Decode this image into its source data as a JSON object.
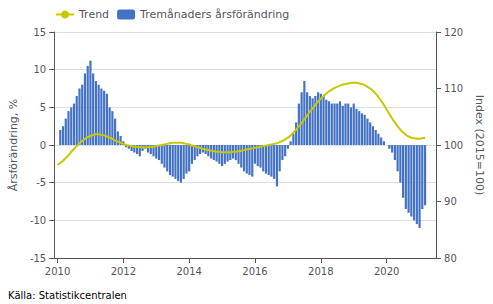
{
  "chart_data": {
    "type": "bar",
    "ylabel": "Årsförändring, %",
    "y2label": "Index (2015=100)",
    "annotations": [
      "Källa: Statistikcentralen"
    ],
    "xlim": [
      2009.9,
      2021.5
    ],
    "xticks": [
      2010,
      2012,
      2014,
      2016,
      2018,
      2020
    ],
    "ylim": [
      -15,
      15
    ],
    "yticks": [
      -15,
      -10,
      -5,
      0,
      5,
      10,
      15
    ],
    "y2lim": [
      80,
      120
    ],
    "y2ticks": [
      80,
      90,
      100,
      110,
      120
    ],
    "grid": true,
    "legend": "upper left",
    "series": [
      {
        "name": "Trend",
        "type": "line",
        "axis": "y2",
        "color": "#C8C800",
        "x": [
          2010.0,
          2010.083,
          2010.167,
          2010.25,
          2010.333,
          2010.417,
          2010.5,
          2010.583,
          2010.667,
          2010.75,
          2010.833,
          2010.917,
          2011.0,
          2011.083,
          2011.167,
          2011.25,
          2011.333,
          2011.417,
          2011.5,
          2011.583,
          2011.667,
          2011.75,
          2011.833,
          2011.917,
          2012.0,
          2012.083,
          2012.167,
          2012.25,
          2012.333,
          2012.417,
          2012.5,
          2012.583,
          2012.667,
          2012.75,
          2012.833,
          2012.917,
          2013.0,
          2013.083,
          2013.167,
          2013.25,
          2013.333,
          2013.417,
          2013.5,
          2013.583,
          2013.667,
          2013.75,
          2013.833,
          2013.917,
          2014.0,
          2014.083,
          2014.167,
          2014.25,
          2014.333,
          2014.417,
          2014.5,
          2014.583,
          2014.667,
          2014.75,
          2014.833,
          2014.917,
          2015.0,
          2015.083,
          2015.167,
          2015.25,
          2015.333,
          2015.417,
          2015.5,
          2015.583,
          2015.667,
          2015.75,
          2015.833,
          2015.917,
          2016.0,
          2016.083,
          2016.167,
          2016.25,
          2016.333,
          2016.417,
          2016.5,
          2016.583,
          2016.667,
          2016.75,
          2016.833,
          2016.917,
          2017.0,
          2017.083,
          2017.167,
          2017.25,
          2017.333,
          2017.417,
          2017.5,
          2017.583,
          2017.667,
          2017.75,
          2017.833,
          2017.917,
          2018.0,
          2018.083,
          2018.167,
          2018.25,
          2018.333,
          2018.417,
          2018.5,
          2018.583,
          2018.667,
          2018.75,
          2018.833,
          2018.917,
          2019.0,
          2019.083,
          2019.167,
          2019.25,
          2019.333,
          2019.417,
          2019.5,
          2019.583,
          2019.667,
          2019.75,
          2019.833,
          2019.917,
          2020.0,
          2020.083,
          2020.167,
          2020.25,
          2020.333,
          2020.417,
          2020.5,
          2020.583,
          2020.667,
          2020.75,
          2020.833,
          2020.917,
          2021.0,
          2021.083,
          2021.167
        ],
        "values": [
          96.5,
          96.8,
          97.2,
          97.7,
          98.2,
          98.8,
          99.3,
          99.8,
          100.3,
          100.7,
          101.1,
          101.4,
          101.6,
          101.8,
          101.9,
          101.9,
          101.8,
          101.7,
          101.5,
          101.3,
          101.1,
          100.8,
          100.6,
          100.4,
          100.2,
          100.0,
          99.9,
          99.8,
          99.7,
          99.7,
          99.6,
          99.6,
          99.6,
          99.6,
          99.7,
          99.7,
          99.8,
          99.9,
          100.0,
          100.1,
          100.2,
          100.3,
          100.4,
          100.4,
          100.4,
          100.4,
          100.3,
          100.2,
          100.1,
          99.9,
          99.8,
          99.6,
          99.5,
          99.3,
          99.2,
          99.1,
          99.0,
          98.9,
          98.8,
          98.8,
          98.7,
          98.7,
          98.7,
          98.7,
          98.8,
          98.8,
          98.9,
          99.0,
          99.1,
          99.2,
          99.3,
          99.4,
          99.5,
          99.6,
          99.7,
          99.8,
          99.9,
          100.0,
          100.1,
          100.2,
          100.3,
          100.5,
          100.7,
          101.0,
          101.3,
          101.7,
          102.2,
          102.7,
          103.3,
          103.9,
          104.6,
          105.2,
          105.9,
          106.5,
          107.1,
          107.7,
          108.2,
          108.7,
          109.1,
          109.5,
          109.8,
          110.1,
          110.3,
          110.5,
          110.7,
          110.8,
          110.9,
          111.0,
          111.0,
          111.0,
          110.9,
          110.8,
          110.6,
          110.3,
          110.0,
          109.6,
          109.1,
          108.5,
          107.8,
          107.1,
          106.3,
          105.5,
          104.7,
          104.0,
          103.3,
          102.7,
          102.2,
          101.8,
          101.5,
          101.3,
          101.2,
          101.1,
          101.1,
          101.2,
          101.3
        ]
      },
      {
        "name": "Tremånaders årsförändring",
        "type": "bar",
        "color": "#4472C4",
        "x": [
          2010.083,
          2010.167,
          2010.25,
          2010.333,
          2010.417,
          2010.5,
          2010.583,
          2010.667,
          2010.75,
          2010.833,
          2010.917,
          2011.0,
          2011.083,
          2011.167,
          2011.25,
          2011.333,
          2011.417,
          2011.5,
          2011.583,
          2011.667,
          2011.75,
          2011.833,
          2011.917,
          2012.0,
          2012.083,
          2012.167,
          2012.25,
          2012.333,
          2012.417,
          2012.5,
          2012.583,
          2012.667,
          2012.75,
          2012.833,
          2012.917,
          2013.0,
          2013.083,
          2013.167,
          2013.25,
          2013.333,
          2013.417,
          2013.5,
          2013.583,
          2013.667,
          2013.75,
          2013.833,
          2013.917,
          2014.0,
          2014.083,
          2014.167,
          2014.25,
          2014.333,
          2014.417,
          2014.5,
          2014.583,
          2014.667,
          2014.75,
          2014.833,
          2014.917,
          2015.0,
          2015.083,
          2015.167,
          2015.25,
          2015.333,
          2015.417,
          2015.5,
          2015.583,
          2015.667,
          2015.75,
          2015.833,
          2015.917,
          2016.0,
          2016.083,
          2016.167,
          2016.25,
          2016.333,
          2016.417,
          2016.5,
          2016.583,
          2016.667,
          2016.75,
          2016.833,
          2016.917,
          2017.0,
          2017.083,
          2017.167,
          2017.25,
          2017.333,
          2017.417,
          2017.5,
          2017.583,
          2017.667,
          2017.75,
          2017.833,
          2017.917,
          2018.0,
          2018.083,
          2018.167,
          2018.25,
          2018.333,
          2018.417,
          2018.5,
          2018.583,
          2018.667,
          2018.75,
          2018.833,
          2018.917,
          2019.0,
          2019.083,
          2019.167,
          2019.25,
          2019.333,
          2019.417,
          2019.5,
          2019.583,
          2019.667,
          2019.75,
          2019.833,
          2019.917,
          2020.0,
          2020.083,
          2020.167,
          2020.25,
          2020.333,
          2020.417,
          2020.5,
          2020.583,
          2020.667,
          2020.75,
          2020.833,
          2020.917,
          2021.0,
          2021.083,
          2021.167
        ],
        "values": [
          2.0,
          2.5,
          3.5,
          4.5,
          5.0,
          5.5,
          6.5,
          7.5,
          8.0,
          9.5,
          10.5,
          11.2,
          9.5,
          8.5,
          8.0,
          7.5,
          7.2,
          6.8,
          5.0,
          4.5,
          3.5,
          1.8,
          1.2,
          0.5,
          -0.3,
          -0.5,
          -0.8,
          -1.0,
          -1.2,
          -1.5,
          -0.8,
          -0.5,
          -1.0,
          -1.2,
          -1.5,
          -1.8,
          -2.0,
          -2.5,
          -3.0,
          -3.5,
          -4.0,
          -4.2,
          -4.5,
          -4.8,
          -5.0,
          -4.5,
          -3.8,
          -3.5,
          -2.5,
          -2.0,
          -1.5,
          -1.2,
          -1.0,
          -1.2,
          -1.5,
          -1.8,
          -2.0,
          -2.2,
          -2.5,
          -2.8,
          -2.5,
          -2.2,
          -2.0,
          -1.8,
          -2.0,
          -2.5,
          -3.0,
          -3.5,
          -3.8,
          -4.0,
          -4.2,
          -2.5,
          -2.8,
          -3.0,
          -3.5,
          -3.8,
          -4.0,
          -4.2,
          -4.5,
          -5.5,
          -3.5,
          -2.0,
          -1.5,
          -0.5,
          0.5,
          1.5,
          3.0,
          5.5,
          7.0,
          8.5,
          7.0,
          6.5,
          6.2,
          6.5,
          7.0,
          6.8,
          6.5,
          6.0,
          5.8,
          5.5,
          5.5,
          5.5,
          5.8,
          5.2,
          5.5,
          5.5,
          5.0,
          5.5,
          4.8,
          4.5,
          4.2,
          4.0,
          3.5,
          3.0,
          2.5,
          2.0,
          1.5,
          1.0,
          0.5,
          0.0,
          -0.5,
          -1.0,
          -2.0,
          -3.5,
          -5.0,
          -7.0,
          -8.5,
          -9.0,
          -9.5,
          -10.0,
          -10.5,
          -11.0,
          -8.5,
          -8.0
        ]
      }
    ]
  }
}
